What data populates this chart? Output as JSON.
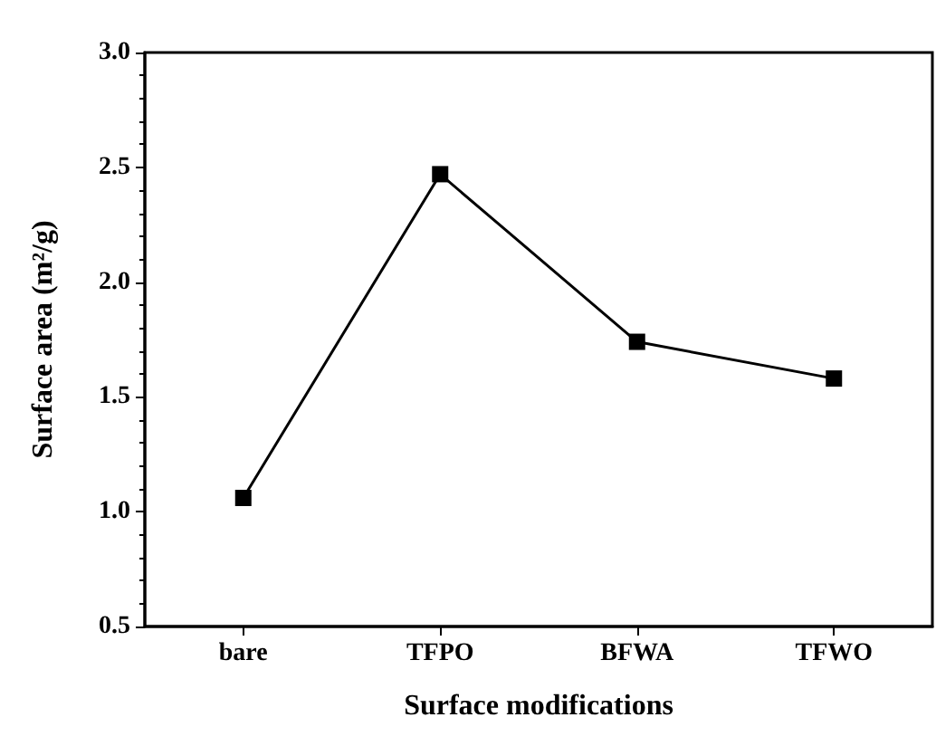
{
  "chart_data": {
    "type": "line",
    "xlabel": "Surface modifications",
    "ylabel": "Surface area (m²/g)",
    "categories": [
      "bare",
      "TFPO",
      "BFWA",
      "TFWO"
    ],
    "values": [
      1.06,
      2.47,
      1.74,
      1.58
    ],
    "color": "#000000",
    "marker": "square",
    "line_style": "solid",
    "grid": false,
    "ylim": [
      0.5,
      3.0
    ],
    "yticks": [
      {
        "value": 0.5,
        "label": "0.5"
      },
      {
        "value": 1,
        "label": "1.0"
      },
      {
        "value": 1.5,
        "label": "1.5"
      },
      {
        "value": 2,
        "label": "2.0"
      },
      {
        "value": 2.5,
        "label": "2.5"
      },
      {
        "value": 3,
        "label": "3.0"
      }
    ]
  }
}
